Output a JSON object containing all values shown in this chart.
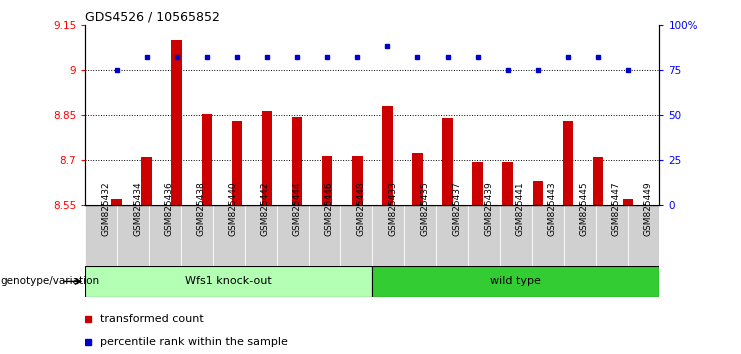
{
  "title": "GDS4526 / 10565852",
  "samples": [
    "GSM825432",
    "GSM825434",
    "GSM825436",
    "GSM825438",
    "GSM825440",
    "GSM825442",
    "GSM825444",
    "GSM825446",
    "GSM825448",
    "GSM825433",
    "GSM825435",
    "GSM825437",
    "GSM825439",
    "GSM825441",
    "GSM825443",
    "GSM825445",
    "GSM825447",
    "GSM825449"
  ],
  "bar_values": [
    8.57,
    8.71,
    9.1,
    8.855,
    8.83,
    8.865,
    8.845,
    8.715,
    8.715,
    8.88,
    8.725,
    8.84,
    8.695,
    8.695,
    8.63,
    8.83,
    8.71,
    8.57
  ],
  "dot_values": [
    75,
    82,
    82,
    82,
    82,
    82,
    82,
    82,
    82,
    88,
    82,
    82,
    82,
    75,
    75,
    82,
    82,
    75
  ],
  "group1_label": "Wfs1 knock-out",
  "group2_label": "wild type",
  "group1_count": 9,
  "group2_count": 9,
  "bar_color": "#cc0000",
  "dot_color": "#0000cc",
  "group1_bg": "#b3ffb3",
  "group2_bg": "#33cc33",
  "tick_label_bg": "#d0d0d0",
  "ylim_left": [
    8.55,
    9.15
  ],
  "ylim_right": [
    0,
    100
  ],
  "yticks_left": [
    8.55,
    8.7,
    8.85,
    9.0,
    9.15
  ],
  "yticks_right": [
    0,
    25,
    50,
    75,
    100
  ],
  "ytick_labels_left": [
    "8.55",
    "8.7",
    "8.85",
    "9",
    "9.15"
  ],
  "ytick_labels_right": [
    "0",
    "25",
    "50",
    "75",
    "100%"
  ],
  "genotype_label": "genotype/variation",
  "legend_bar": "transformed count",
  "legend_dot": "percentile rank within the sample",
  "hgrid_values": [
    8.7,
    8.85,
    9.0
  ],
  "bar_bottom": 8.55,
  "bar_width": 0.35
}
